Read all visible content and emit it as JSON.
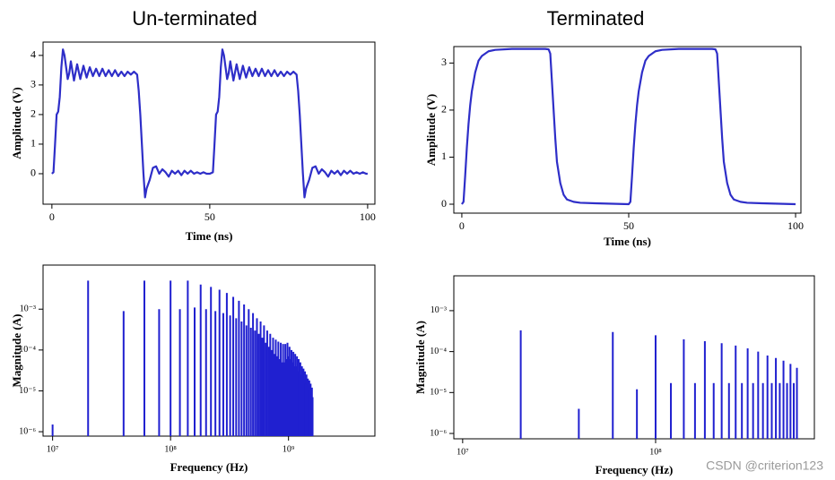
{
  "chart_data": [
    {
      "type": "line",
      "title": "Un-terminated",
      "xlabel": "Time (ns)",
      "ylabel": "Amplitude (V)",
      "color": "#2e2ec8",
      "xlim": [
        -2.8,
        102.3
      ],
      "ylim": [
        -1.03,
        4.45
      ],
      "xticks": [
        0,
        50,
        100
      ],
      "yticks": [
        0,
        1,
        2,
        3,
        4
      ],
      "x": [
        0,
        0.5,
        1,
        1.5,
        2,
        2.5,
        3,
        3.5,
        4,
        4.5,
        5,
        5.5,
        6,
        7,
        8,
        9,
        10,
        11,
        12,
        13,
        14,
        15,
        16,
        17,
        18,
        19,
        20,
        21,
        22,
        23,
        24,
        25,
        26,
        27,
        27.5,
        28,
        28.5,
        29,
        29.5,
        30,
        31,
        32,
        33,
        34,
        35,
        36,
        37,
        38,
        39,
        40,
        41,
        42,
        43,
        44,
        45,
        46,
        47,
        48,
        49,
        50,
        51,
        51.5,
        52,
        52.5,
        53,
        53.5,
        54,
        54.5,
        55,
        55.5,
        56,
        56.5,
        57.5,
        58.5,
        59.5,
        60.5,
        61.5,
        62.5,
        63.5,
        64.5,
        65.5,
        66.5,
        67.5,
        68.5,
        69.5,
        70.5,
        71.5,
        72.5,
        73.5,
        74.5,
        75.5,
        76.5,
        77.5,
        78,
        78.5,
        79,
        79.5,
        80,
        80.5,
        81.5,
        82.5,
        83.5,
        84.5,
        85.5,
        86.5,
        87.5,
        88.5,
        89.5,
        90.5,
        91.5,
        92.5,
        93.5,
        94.5,
        95.5,
        96.5,
        97.5,
        98.5,
        99.5,
        100
      ],
      "values": [
        0,
        0.05,
        1.0,
        2.0,
        2.1,
        2.6,
        3.6,
        4.2,
        4.0,
        3.6,
        3.2,
        3.4,
        3.8,
        3.15,
        3.7,
        3.2,
        3.65,
        3.25,
        3.6,
        3.3,
        3.55,
        3.3,
        3.55,
        3.3,
        3.5,
        3.3,
        3.5,
        3.3,
        3.45,
        3.3,
        3.45,
        3.35,
        3.45,
        3.35,
        2.8,
        2.0,
        1.0,
        0,
        -0.8,
        -0.5,
        -0.2,
        0.2,
        0.25,
        0.0,
        0.15,
        0.05,
        -0.1,
        0.1,
        0.0,
        0.1,
        -0.05,
        0.1,
        0.0,
        0.1,
        0.0,
        0.05,
        0.0,
        0.05,
        0.0,
        0.0,
        0.05,
        1.0,
        2.0,
        2.1,
        2.6,
        3.6,
        4.2,
        4.0,
        3.6,
        3.2,
        3.4,
        3.8,
        3.15,
        3.7,
        3.2,
        3.65,
        3.25,
        3.6,
        3.3,
        3.55,
        3.3,
        3.55,
        3.3,
        3.5,
        3.3,
        3.5,
        3.3,
        3.45,
        3.3,
        3.45,
        3.35,
        3.45,
        3.35,
        2.8,
        2.0,
        1.0,
        0,
        -0.8,
        -0.5,
        -0.2,
        0.2,
        0.25,
        0.0,
        0.15,
        0.05,
        -0.1,
        0.1,
        0.0,
        0.1,
        -0.05,
        0.1,
        0.0,
        0.1,
        0.0,
        0.05,
        0.0,
        0.05,
        0.0,
        0.0
      ]
    },
    {
      "type": "line",
      "title": "Terminated",
      "xlabel": "Time (ns)",
      "ylabel": "Amplitude (V)",
      "color": "#2e2ec8",
      "xlim": [
        -2.4,
        101.6
      ],
      "ylim": [
        -0.19,
        3.35
      ],
      "xticks": [
        0,
        50,
        100
      ],
      "yticks": [
        0,
        1,
        2,
        3
      ],
      "x": [
        0,
        0.5,
        1,
        1.5,
        2,
        2.5,
        3,
        4,
        5,
        6,
        7,
        8,
        10,
        15,
        20,
        25,
        26,
        26.5,
        27,
        27.5,
        28,
        28.5,
        29.5,
        30.5,
        31.5,
        33.5,
        35.5,
        40,
        45,
        50,
        50.5,
        51,
        51.5,
        52,
        52.5,
        53,
        54,
        55,
        56,
        57,
        58,
        60,
        65,
        70,
        75,
        76,
        76.5,
        77,
        77.5,
        78,
        78.5,
        79.5,
        80.5,
        81.5,
        83.5,
        85.5,
        90,
        95,
        100
      ],
      "values": [
        0,
        0.05,
        0.6,
        1.2,
        1.7,
        2.1,
        2.4,
        2.8,
        3.05,
        3.15,
        3.2,
        3.25,
        3.28,
        3.3,
        3.3,
        3.3,
        3.29,
        3.2,
        2.6,
        2.0,
        1.4,
        0.9,
        0.45,
        0.2,
        0.1,
        0.05,
        0.03,
        0.02,
        0.01,
        0.0,
        0.05,
        0.6,
        1.2,
        1.7,
        2.1,
        2.4,
        2.8,
        3.05,
        3.15,
        3.2,
        3.25,
        3.28,
        3.3,
        3.3,
        3.3,
        3.29,
        3.2,
        2.6,
        2.0,
        1.4,
        0.9,
        0.45,
        0.2,
        0.1,
        0.05,
        0.03,
        0.02,
        0.01,
        0.0
      ]
    },
    {
      "type": "stem",
      "xlabel": "Frequency (Hz)",
      "ylabel": "Magnitude (A)",
      "color": "#2020d0",
      "xscale": "log",
      "yscale": "log",
      "xlim": [
        8300000.0,
        5400000000.0
      ],
      "ylim": [
        7.8e-07,
        0.012
      ],
      "xticks": [
        {
          "value": 10000000.0,
          "label": "10⁷"
        },
        {
          "value": 100000000.0,
          "label": "10⁸"
        },
        {
          "value": 1000000000.0,
          "label": "10⁹"
        }
      ],
      "yticks": [
        {
          "value": 0.001,
          "label": "10⁻³"
        },
        {
          "value": 0.0001,
          "label": "10⁻⁴"
        },
        {
          "value": 1e-05,
          "label": "10⁻⁵"
        },
        {
          "value": 1e-06,
          "label": "10⁻⁶"
        }
      ],
      "x": [
        10000000.0,
        20000000.0,
        40000000.0,
        60000000.0,
        80000000.0,
        100000000.0,
        120000000.0,
        140000000.0,
        160000000.0,
        180000000.0,
        200000000.0,
        220000000.0,
        240000000.0,
        260000000.0,
        280000000.0,
        300000000.0,
        320000000.0,
        340000000.0,
        360000000.0,
        380000000.0,
        400000000.0,
        420000000.0,
        440000000.0,
        460000000.0,
        480000000.0,
        500000000.0,
        520000000.0,
        540000000.0,
        560000000.0,
        580000000.0,
        600000000.0,
        620000000.0,
        640000000.0,
        660000000.0,
        680000000.0,
        700000000.0,
        720000000.0,
        740000000.0,
        760000000.0,
        780000000.0,
        800000000.0,
        820000000.0,
        840000000.0,
        860000000.0,
        880000000.0,
        900000000.0,
        920000000.0,
        940000000.0,
        960000000.0,
        980000000.0,
        1000000000.0,
        1020000000.0,
        1040000000.0,
        1060000000.0,
        1080000000.0,
        1100000000.0,
        1120000000.0,
        1140000000.0,
        1160000000.0,
        1180000000.0,
        1200000000.0,
        1220000000.0,
        1240000000.0,
        1260000000.0,
        1280000000.0,
        1300000000.0,
        1320000000.0,
        1340000000.0,
        1360000000.0,
        1380000000.0,
        1400000000.0,
        1420000000.0,
        1440000000.0,
        1460000000.0,
        1480000000.0,
        1500000000.0,
        1520000000.0,
        1540000000.0,
        1560000000.0,
        1580000000.0,
        1600000000.0
      ],
      "values": [
        1.5e-06,
        0.005,
        0.0009,
        0.005,
        0.001,
        0.005,
        0.001,
        0.005,
        0.0011,
        0.004,
        0.001,
        0.0035,
        0.0009,
        0.003,
        0.0008,
        0.0025,
        0.0007,
        0.002,
        0.0006,
        0.0016,
        0.0005,
        0.0013,
        0.0004,
        0.001,
        0.00035,
        0.0008,
        0.0003,
        0.0006,
        0.00025,
        0.0005,
        0.0002,
        0.0004,
        0.00015,
        0.0003,
        0.00012,
        0.00025,
        0.0001,
        0.0002,
        8e-05,
        0.00018,
        7e-05,
        0.00016,
        6e-05,
        0.00015,
        5e-05,
        0.00014,
        5e-05,
        0.00014,
        6e-05,
        0.00015,
        7e-05,
        0.00012,
        6e-05,
        0.0001,
        5e-05,
        9e-05,
        4e-05,
        8e-05,
        4e-05,
        7e-05,
        3e-05,
        6e-05,
        3e-05,
        5e-05,
        2.5e-05,
        4e-05,
        2e-05,
        3.5e-05,
        2e-05,
        3e-05,
        1.5e-05,
        2.5e-05,
        1.2e-05,
        2e-05,
        1e-05,
        1.8e-05,
        1e-05,
        1.5e-05,
        8e-06,
        1.2e-05,
        7e-06
      ]
    },
    {
      "type": "stem",
      "xlabel": "Frequency (Hz)",
      "ylabel": "Magnitude (A)",
      "color": "#2020d0",
      "xscale": "log",
      "yscale": "log",
      "xlim": [
        9000000.0,
        665000000.0
      ],
      "ylim": [
        7.4e-07,
        0.0071
      ],
      "xticks": [
        {
          "value": 10000000.0,
          "label": "10⁷"
        },
        {
          "value": 100000000.0,
          "label": "10⁸"
        }
      ],
      "yticks": [
        {
          "value": 0.001,
          "label": "10⁻³"
        },
        {
          "value": 0.0001,
          "label": "10⁻⁴"
        },
        {
          "value": 1e-05,
          "label": "10⁻⁵"
        },
        {
          "value": 1e-06,
          "label": "10⁻⁶"
        }
      ],
      "x": [
        20000000.0,
        40000000.0,
        60000000.0,
        80000000.0,
        100000000.0,
        120000000.0,
        140000000.0,
        160000000.0,
        180000000.0,
        200000000.0,
        220000000.0,
        240000000.0,
        260000000.0,
        280000000.0,
        300000000.0,
        320000000.0,
        340000000.0,
        360000000.0,
        380000000.0,
        400000000.0,
        420000000.0,
        440000000.0,
        460000000.0,
        480000000.0,
        500000000.0,
        520000000.0,
        540000000.0
      ],
      "values": [
        0.00033,
        4e-06,
        0.0003,
        1.2e-05,
        0.00025,
        1.7e-05,
        0.0002,
        1.7e-05,
        0.00018,
        1.7e-05,
        0.00016,
        1.7e-05,
        0.00014,
        1.7e-05,
        0.00012,
        1.7e-05,
        0.0001,
        1.7e-05,
        8e-05,
        1.7e-05,
        7e-05,
        1.7e-05,
        6e-05,
        1.7e-05,
        5e-05,
        1.7e-05,
        4e-05
      ]
    }
  ],
  "watermark": "CSDN @criterion123"
}
